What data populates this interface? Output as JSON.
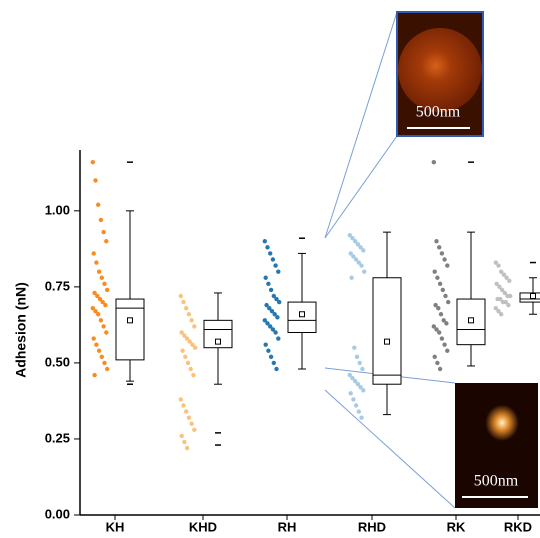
{
  "chart_data": {
    "type": "box-scatter",
    "y_label": "Adhesion (nN)",
    "categories": [
      "KH",
      "KHD",
      "RH",
      "RHD",
      "RK",
      "RKD"
    ],
    "ylim": [
      0,
      1.2
    ],
    "yticks": [
      {
        "value": 0,
        "label": "0.00"
      },
      0.25,
      {
        "value": 0.5,
        "label": "0.50"
      },
      0.75,
      {
        "value": 1,
        "label": "1.00"
      }
    ],
    "series": [
      {
        "color": "#f98c1f",
        "points": [
          1.16,
          1.1,
          1.02,
          0.97,
          0.93,
          0.9,
          0.86,
          0.83,
          0.8,
          0.78,
          0.76,
          0.74,
          0.73,
          0.72,
          0.71,
          0.7,
          0.69,
          0.68,
          0.67,
          0.66,
          0.64,
          0.62,
          0.6,
          0.58,
          0.56,
          0.54,
          0.52,
          0.5,
          0.48,
          0.46
        ],
        "box": {
          "whisker_low": 0.44,
          "q1": 0.51,
          "median": 0.68,
          "q3": 0.71,
          "whisker_high": 1.0,
          "mean": 0.64
        },
        "outliers": [
          1.16,
          0.43
        ]
      },
      {
        "color": "#fbc27a",
        "points": [
          0.72,
          0.7,
          0.68,
          0.66,
          0.64,
          0.62,
          0.6,
          0.59,
          0.58,
          0.57,
          0.56,
          0.55,
          0.54,
          0.52,
          0.5,
          0.48,
          0.46,
          0.38,
          0.36,
          0.34,
          0.32,
          0.3,
          0.28,
          0.26,
          0.24,
          0.22
        ],
        "box": {
          "whisker_low": 0.43,
          "q1": 0.55,
          "median": 0.61,
          "q3": 0.64,
          "whisker_high": 0.73,
          "mean": 0.57
        },
        "outliers": [
          0.27,
          0.23
        ]
      },
      {
        "color": "#2577b0",
        "points": [
          0.9,
          0.88,
          0.86,
          0.84,
          0.82,
          0.8,
          0.78,
          0.76,
          0.74,
          0.72,
          0.71,
          0.7,
          0.69,
          0.68,
          0.67,
          0.66,
          0.65,
          0.64,
          0.63,
          0.62,
          0.61,
          0.6,
          0.58,
          0.56,
          0.54,
          0.52,
          0.5,
          0.48
        ],
        "box": {
          "whisker_low": 0.48,
          "q1": 0.6,
          "median": 0.64,
          "q3": 0.7,
          "whisker_high": 0.86,
          "mean": 0.66
        },
        "outliers": [
          0.91
        ]
      },
      {
        "color": "#a6cce3",
        "points": [
          0.92,
          0.91,
          0.9,
          0.89,
          0.88,
          0.87,
          0.86,
          0.85,
          0.84,
          0.83,
          0.82,
          0.8,
          0.78,
          0.55,
          0.52,
          0.5,
          0.48,
          0.46,
          0.45,
          0.44,
          0.43,
          0.42,
          0.41,
          0.4,
          0.38,
          0.36,
          0.34,
          0.32
        ],
        "box": {
          "whisker_low": 0.33,
          "q1": 0.43,
          "median": 0.46,
          "q3": 0.78,
          "whisker_high": 0.93,
          "mean": 0.57
        },
        "outliers": []
      },
      {
        "color": "#808080",
        "points": [
          1.16,
          0.9,
          0.88,
          0.86,
          0.84,
          0.82,
          0.8,
          0.78,
          0.76,
          0.74,
          0.72,
          0.7,
          0.69,
          0.68,
          0.66,
          0.64,
          0.63,
          0.62,
          0.61,
          0.6,
          0.58,
          0.56,
          0.54,
          0.52,
          0.5,
          0.48
        ],
        "box": {
          "whisker_low": 0.49,
          "q1": 0.56,
          "median": 0.61,
          "q3": 0.71,
          "whisker_high": 0.93,
          "mean": 0.64
        },
        "outliers": [
          1.16
        ]
      },
      {
        "color": "#c0c0c0",
        "points": [
          0.83,
          0.82,
          0.8,
          0.79,
          0.78,
          0.77,
          0.76,
          0.75,
          0.74,
          0.73,
          0.72,
          0.72,
          0.71,
          0.71,
          0.7,
          0.7,
          0.69,
          0.68,
          0.67,
          0.66
        ],
        "box": {
          "whisker_low": 0.66,
          "q1": 0.7,
          "median": 0.71,
          "q3": 0.73,
          "whisker_high": 0.78,
          "mean": 0.72
        },
        "outliers": [
          0.83
        ]
      }
    ]
  },
  "insets": [
    {
      "scale_bar": "500nm"
    },
    {
      "scale_bar": "500nm"
    }
  ]
}
